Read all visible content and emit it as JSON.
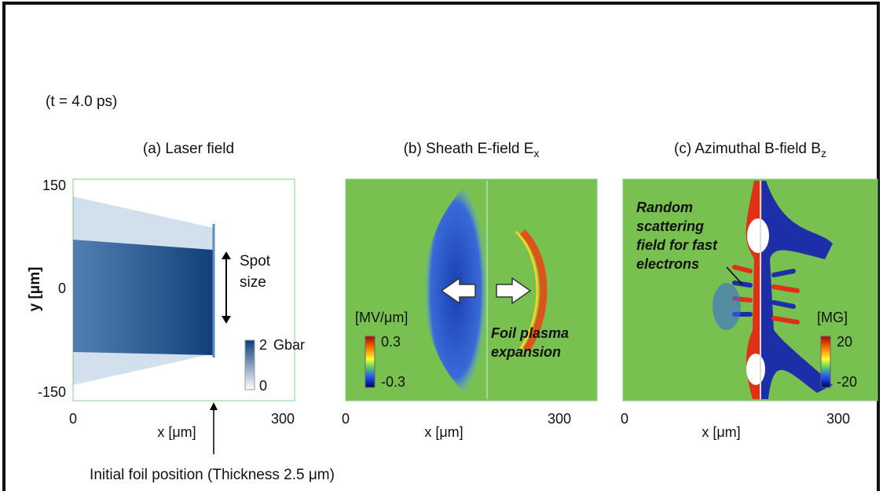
{
  "time_label": "(t = 4.0 ps)",
  "panels": [
    {
      "title": "(a) Laser field",
      "title_sub": "",
      "y_label": "y [μm]",
      "y_ticks": [
        "150",
        "0",
        "-150"
      ],
      "x_ticks": [
        "0",
        "300"
      ],
      "x_label": "x [μm]",
      "colorbar": {
        "unit": "Gbar",
        "max": "2",
        "min": "0"
      },
      "annotation": [
        "Spot",
        "size"
      ]
    },
    {
      "title": "(b) Sheath E-field E",
      "title_sub": "x",
      "x_ticks": [
        "0",
        "300"
      ],
      "x_label": "x [μm]",
      "colorbar": {
        "unit": "[MV/μm]",
        "max": "0.3",
        "min": "-0.3"
      },
      "annotation": [
        "Foil plasma",
        "expansion"
      ]
    },
    {
      "title": "(c) Azimuthal B-field B",
      "title_sub": "z",
      "x_ticks": [
        "0",
        "300"
      ],
      "x_label": "x [μm]",
      "colorbar": {
        "unit": "[MG]",
        "max": "20",
        "min": "-20"
      },
      "annotation": [
        "Random",
        "scattering",
        "field for fast",
        "electrons"
      ]
    }
  ],
  "footnote": "Initial foil position (Thickness 2.5 μm)"
}
